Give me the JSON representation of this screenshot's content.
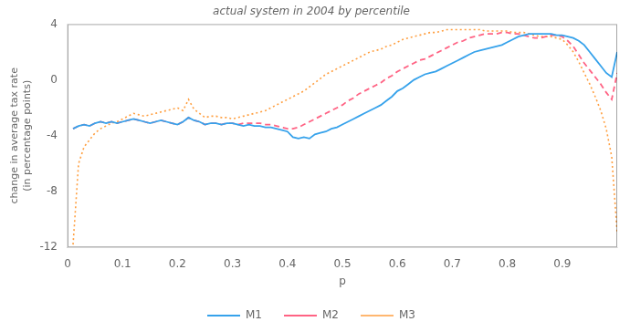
{
  "chart_data": {
    "type": "line",
    "title": "actual system in 2004 by percentile",
    "xlabel": "p",
    "ylabel": "change in average tax rate\n(in percentage points)",
    "xlim": [
      0,
      1
    ],
    "ylim": [
      -12,
      4
    ],
    "xticks": [
      0,
      0.1,
      0.2,
      0.3,
      0.4,
      0.5,
      0.6,
      0.7,
      0.8,
      0.9
    ],
    "yticks": [
      -12,
      -8,
      -4,
      0,
      4
    ],
    "grid": false,
    "legend": "bottom",
    "x": [
      0.01,
      0.02,
      0.03,
      0.04,
      0.05,
      0.06,
      0.07,
      0.08,
      0.09,
      0.1,
      0.11,
      0.12,
      0.13,
      0.14,
      0.15,
      0.16,
      0.17,
      0.18,
      0.19,
      0.2,
      0.21,
      0.22,
      0.23,
      0.24,
      0.25,
      0.26,
      0.27,
      0.28,
      0.29,
      0.3,
      0.31,
      0.32,
      0.33,
      0.34,
      0.35,
      0.36,
      0.37,
      0.38,
      0.39,
      0.4,
      0.41,
      0.42,
      0.43,
      0.44,
      0.45,
      0.46,
      0.47,
      0.48,
      0.49,
      0.5,
      0.51,
      0.52,
      0.53,
      0.54,
      0.55,
      0.56,
      0.57,
      0.58,
      0.59,
      0.6,
      0.61,
      0.62,
      0.63,
      0.64,
      0.65,
      0.66,
      0.67,
      0.68,
      0.69,
      0.7,
      0.71,
      0.72,
      0.73,
      0.74,
      0.75,
      0.76,
      0.77,
      0.78,
      0.79,
      0.8,
      0.81,
      0.82,
      0.83,
      0.84,
      0.85,
      0.86,
      0.87,
      0.88,
      0.89,
      0.9,
      0.91,
      0.92,
      0.93,
      0.94,
      0.95,
      0.96,
      0.97,
      0.98,
      0.99,
      1
    ],
    "series": [
      {
        "name": "M1",
        "line_style": "solid",
        "values": [
          -3.5,
          -3.3,
          -3.2,
          -3.3,
          -3.1,
          -3.0,
          -3.1,
          -3.0,
          -3.1,
          -3.0,
          -2.9,
          -2.8,
          -2.9,
          -3.0,
          -3.1,
          -3.0,
          -2.9,
          -3.0,
          -3.1,
          -3.2,
          -3.0,
          -2.7,
          -2.9,
          -3.0,
          -3.2,
          -3.1,
          -3.1,
          -3.2,
          -3.1,
          -3.1,
          -3.2,
          -3.3,
          -3.2,
          -3.3,
          -3.3,
          -3.4,
          -3.4,
          -3.5,
          -3.6,
          -3.7,
          -4.1,
          -4.2,
          -4.1,
          -4.2,
          -3.9,
          -3.8,
          -3.7,
          -3.5,
          -3.4,
          -3.2,
          -3.0,
          -2.8,
          -2.6,
          -2.4,
          -2.2,
          -2.0,
          -1.8,
          -1.5,
          -1.2,
          -0.8,
          -0.6,
          -0.3,
          0.0,
          0.2,
          0.4,
          0.5,
          0.6,
          0.8,
          1.0,
          1.2,
          1.4,
          1.6,
          1.8,
          2.0,
          2.1,
          2.2,
          2.3,
          2.4,
          2.5,
          2.7,
          2.9,
          3.1,
          3.2,
          3.3,
          3.3,
          3.3,
          3.3,
          3.3,
          3.2,
          3.2,
          3.1,
          3.0,
          2.8,
          2.5,
          2.0,
          1.5,
          1.0,
          0.5,
          0.2,
          2.0
        ]
      },
      {
        "name": "M2",
        "line_style": "dashed",
        "values": [
          -3.5,
          -3.3,
          -3.2,
          -3.3,
          -3.1,
          -3.0,
          -3.1,
          -3.0,
          -3.1,
          -3.0,
          -2.9,
          -2.8,
          -2.9,
          -3.0,
          -3.1,
          -3.0,
          -2.9,
          -3.0,
          -3.1,
          -3.2,
          -3.0,
          -2.7,
          -2.9,
          -3.0,
          -3.2,
          -3.1,
          -3.1,
          -3.2,
          -3.1,
          -3.1,
          -3.2,
          -3.1,
          -3.1,
          -3.1,
          -3.1,
          -3.2,
          -3.2,
          -3.3,
          -3.4,
          -3.5,
          -3.5,
          -3.4,
          -3.2,
          -3.0,
          -2.8,
          -2.6,
          -2.4,
          -2.2,
          -2.0,
          -1.8,
          -1.5,
          -1.3,
          -1.0,
          -0.8,
          -0.6,
          -0.4,
          -0.2,
          0.1,
          0.3,
          0.6,
          0.8,
          1.0,
          1.2,
          1.4,
          1.5,
          1.7,
          1.9,
          2.1,
          2.3,
          2.5,
          2.7,
          2.8,
          3.0,
          3.1,
          3.2,
          3.3,
          3.3,
          3.3,
          3.4,
          3.4,
          3.3,
          3.3,
          3.2,
          3.1,
          3.0,
          3.0,
          3.1,
          3.2,
          3.2,
          3.1,
          2.8,
          2.4,
          1.8,
          1.2,
          0.7,
          0.2,
          -0.3,
          -0.9,
          -1.4,
          0.5
        ]
      },
      {
        "name": "M3",
        "line_style": "dotted",
        "values": [
          -11.8,
          -6.0,
          -4.8,
          -4.3,
          -3.8,
          -3.5,
          -3.3,
          -3.1,
          -3.0,
          -2.8,
          -2.6,
          -2.4,
          -2.5,
          -2.6,
          -2.5,
          -2.4,
          -2.3,
          -2.2,
          -2.1,
          -2.0,
          -2.2,
          -1.4,
          -2.1,
          -2.4,
          -2.7,
          -2.6,
          -2.6,
          -2.7,
          -2.7,
          -2.8,
          -2.7,
          -2.6,
          -2.5,
          -2.4,
          -2.3,
          -2.2,
          -2.0,
          -1.8,
          -1.6,
          -1.4,
          -1.2,
          -1.0,
          -0.8,
          -0.5,
          -0.2,
          0.1,
          0.4,
          0.6,
          0.8,
          1.0,
          1.2,
          1.4,
          1.6,
          1.8,
          2.0,
          2.1,
          2.2,
          2.4,
          2.5,
          2.7,
          2.9,
          3.0,
          3.1,
          3.2,
          3.3,
          3.4,
          3.4,
          3.5,
          3.6,
          3.6,
          3.6,
          3.6,
          3.6,
          3.6,
          3.6,
          3.5,
          3.5,
          3.5,
          3.5,
          3.5,
          3.4,
          3.4,
          3.4,
          3.3,
          3.2,
          3.1,
          3.1,
          3.1,
          3.0,
          2.9,
          2.5,
          2.0,
          1.3,
          0.5,
          -0.3,
          -1.2,
          -2.2,
          -3.5,
          -5.5,
          -11.0
        ]
      }
    ]
  }
}
